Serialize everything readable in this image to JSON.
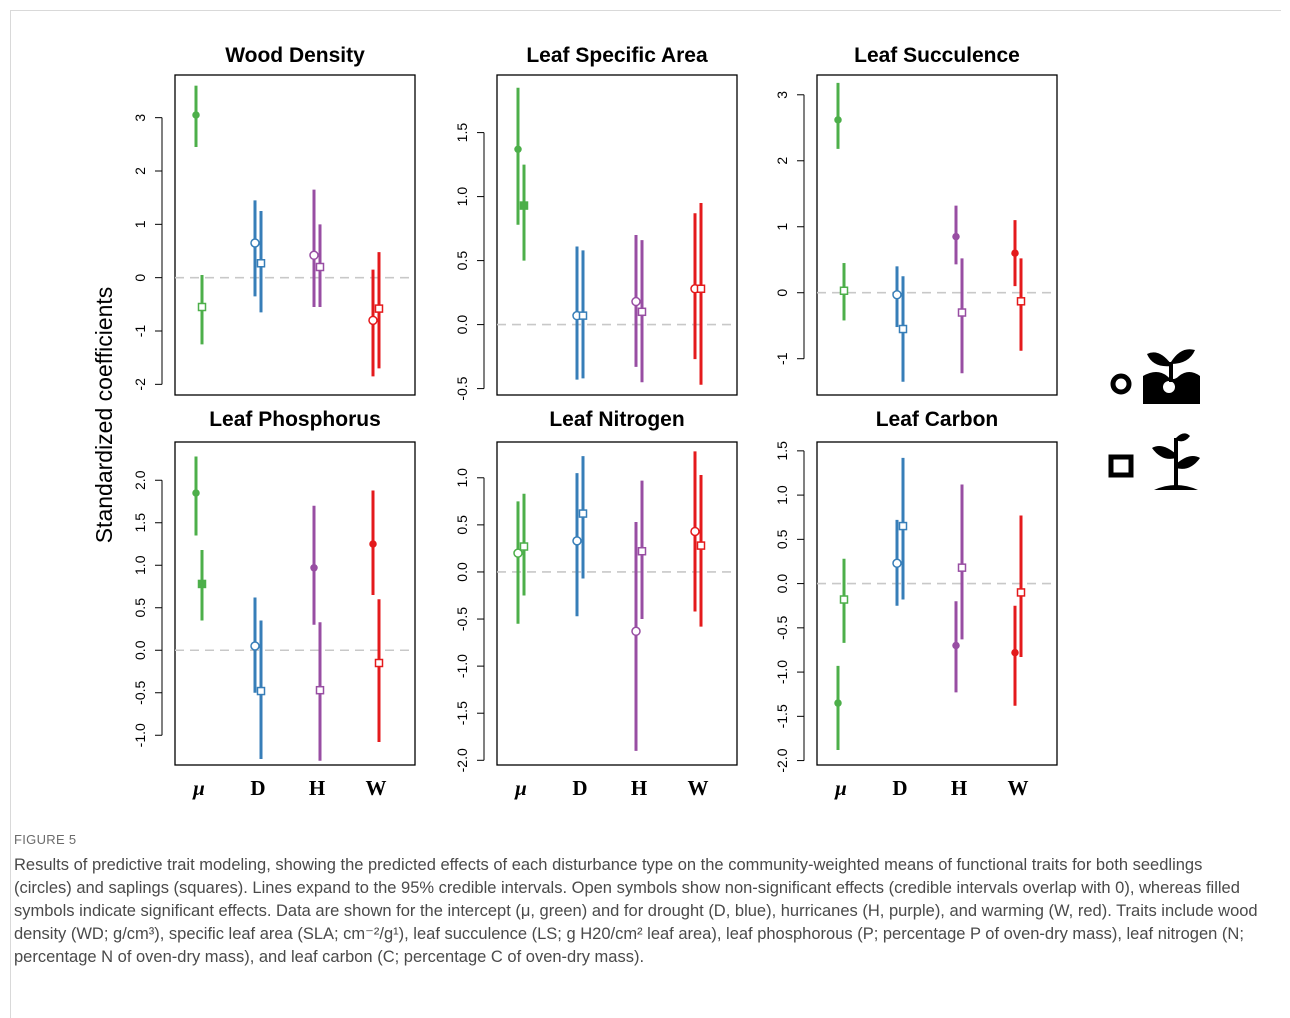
{
  "ylabel": "Standardized coefficients",
  "categories": [
    "μ",
    "D",
    "H",
    "W"
  ],
  "legend": [
    {
      "symbol": "circle",
      "label": "seedlings",
      "icon": "seedling-sprout-icon"
    },
    {
      "symbol": "square",
      "label": "saplings",
      "icon": "sapling-plant-icon"
    }
  ],
  "colors": {
    "mu": "#4daf4a",
    "D": "#377eb8",
    "H": "#984ea3",
    "W": "#e41a1c",
    "zero": "#c8c8c8"
  },
  "caption": {
    "label": "FIGURE 5",
    "text": "Results of predictive trait modeling, showing the predicted effects of each disturbance type on the community-weighted means of functional traits for both seedlings (circles) and saplings (squares). Lines expand to the 95% credible intervals. Open symbols show non-significant effects (credible intervals overlap with 0), whereas filled symbols indicate significant effects. Data are shown for the intercept (μ, green) and for drought (D, blue), hurricanes (H, purple), and warming (W, red). Traits include wood density (WD; g/cm³), specific leaf area (SLA; cm⁻²/g¹), leaf succulence (LS; g H20/cm² leaf area), leaf phosphorous (P; percentage P of oven-dry mass), leaf nitrogen (N; percentage N of oven-dry mass), and leaf carbon (C; percentage C of oven-dry mass)."
  },
  "chart_data": [
    {
      "type": "scatter",
      "title": "Wood Density",
      "ylim": [
        -2.2,
        3.8
      ],
      "ticks": [
        -2,
        -1,
        0,
        1,
        2,
        3
      ],
      "tick_labels": [
        "-2",
        "-1",
        "0",
        "1",
        "2",
        "3"
      ],
      "points": [
        {
          "category": "μ",
          "stage": "seedling",
          "value": 3.05,
          "lower": 2.45,
          "upper": 3.6,
          "significant": true
        },
        {
          "category": "μ",
          "stage": "sapling",
          "value": -0.55,
          "lower": -1.25,
          "upper": 0.05,
          "significant": false
        },
        {
          "category": "D",
          "stage": "seedling",
          "value": 0.65,
          "lower": -0.35,
          "upper": 1.45,
          "significant": false
        },
        {
          "category": "D",
          "stage": "sapling",
          "value": 0.27,
          "lower": -0.65,
          "upper": 1.25,
          "significant": false
        },
        {
          "category": "H",
          "stage": "seedling",
          "value": 0.42,
          "lower": -0.55,
          "upper": 1.65,
          "significant": false
        },
        {
          "category": "H",
          "stage": "sapling",
          "value": 0.2,
          "lower": -0.55,
          "upper": 1.0,
          "significant": false
        },
        {
          "category": "W",
          "stage": "seedling",
          "value": -0.8,
          "lower": -1.85,
          "upper": 0.15,
          "significant": false
        },
        {
          "category": "W",
          "stage": "sapling",
          "value": -0.58,
          "lower": -1.7,
          "upper": 0.48,
          "significant": false
        }
      ]
    },
    {
      "type": "scatter",
      "title": "Leaf Specific Area",
      "ylim": [
        -0.55,
        1.95
      ],
      "ticks": [
        -0.5,
        0,
        0.5,
        1,
        1.5
      ],
      "tick_labels": [
        "-0.5",
        "0.0",
        "0.5",
        "1.0",
        "1.5"
      ],
      "points": [
        {
          "category": "μ",
          "stage": "seedling",
          "value": 1.37,
          "lower": 0.78,
          "upper": 1.85,
          "significant": true
        },
        {
          "category": "μ",
          "stage": "sapling",
          "value": 0.93,
          "lower": 0.5,
          "upper": 1.25,
          "significant": true
        },
        {
          "category": "D",
          "stage": "seedling",
          "value": 0.07,
          "lower": -0.43,
          "upper": 0.61,
          "significant": false
        },
        {
          "category": "D",
          "stage": "sapling",
          "value": 0.07,
          "lower": -0.42,
          "upper": 0.58,
          "significant": false
        },
        {
          "category": "H",
          "stage": "seedling",
          "value": 0.18,
          "lower": -0.33,
          "upper": 0.7,
          "significant": false
        },
        {
          "category": "H",
          "stage": "sapling",
          "value": 0.1,
          "lower": -0.45,
          "upper": 0.66,
          "significant": false
        },
        {
          "category": "W",
          "stage": "seedling",
          "value": 0.28,
          "lower": -0.27,
          "upper": 0.87,
          "significant": false
        },
        {
          "category": "W",
          "stage": "sapling",
          "value": 0.28,
          "lower": -0.47,
          "upper": 0.95,
          "significant": false
        }
      ]
    },
    {
      "type": "scatter",
      "title": "Leaf Succulence",
      "ylim": [
        -1.55,
        3.3
      ],
      "ticks": [
        -1,
        0,
        1,
        2,
        3
      ],
      "tick_labels": [
        "-1",
        "0",
        "1",
        "2",
        "3"
      ],
      "points": [
        {
          "category": "μ",
          "stage": "seedling",
          "value": 2.62,
          "lower": 2.18,
          "upper": 3.18,
          "significant": true
        },
        {
          "category": "μ",
          "stage": "sapling",
          "value": 0.03,
          "lower": -0.42,
          "upper": 0.45,
          "significant": false
        },
        {
          "category": "D",
          "stage": "seedling",
          "value": -0.03,
          "lower": -0.52,
          "upper": 0.4,
          "significant": false
        },
        {
          "category": "D",
          "stage": "sapling",
          "value": -0.55,
          "lower": -1.35,
          "upper": 0.25,
          "significant": false
        },
        {
          "category": "H",
          "stage": "seedling",
          "value": 0.85,
          "lower": 0.43,
          "upper": 1.32,
          "significant": true
        },
        {
          "category": "H",
          "stage": "sapling",
          "value": -0.3,
          "lower": -1.22,
          "upper": 0.52,
          "significant": false
        },
        {
          "category": "W",
          "stage": "seedling",
          "value": 0.6,
          "lower": 0.1,
          "upper": 1.1,
          "significant": true
        },
        {
          "category": "W",
          "stage": "sapling",
          "value": -0.13,
          "lower": -0.88,
          "upper": 0.52,
          "significant": false
        }
      ]
    },
    {
      "type": "scatter",
      "title": "Leaf Phosphorus",
      "ylim": [
        -1.35,
        2.45
      ],
      "ticks": [
        -1,
        -0.5,
        0,
        0.5,
        1,
        1.5,
        2
      ],
      "tick_labels": [
        "-1.0",
        "-0.5",
        "0.0",
        "0.5",
        "1.0",
        "1.5",
        "2.0"
      ],
      "points": [
        {
          "category": "μ",
          "stage": "seedling",
          "value": 1.85,
          "lower": 1.35,
          "upper": 2.28,
          "significant": true
        },
        {
          "category": "μ",
          "stage": "sapling",
          "value": 0.78,
          "lower": 0.35,
          "upper": 1.18,
          "significant": true
        },
        {
          "category": "D",
          "stage": "seedling",
          "value": 0.05,
          "lower": -0.5,
          "upper": 0.62,
          "significant": false
        },
        {
          "category": "D",
          "stage": "sapling",
          "value": -0.48,
          "lower": -1.28,
          "upper": 0.35,
          "significant": false
        },
        {
          "category": "H",
          "stage": "seedling",
          "value": 0.97,
          "lower": 0.3,
          "upper": 1.7,
          "significant": true
        },
        {
          "category": "H",
          "stage": "sapling",
          "value": -0.47,
          "lower": -1.3,
          "upper": 0.33,
          "significant": false
        },
        {
          "category": "W",
          "stage": "seedling",
          "value": 1.25,
          "lower": 0.65,
          "upper": 1.88,
          "significant": true
        },
        {
          "category": "W",
          "stage": "sapling",
          "value": -0.15,
          "lower": -1.08,
          "upper": 0.6,
          "significant": false
        }
      ]
    },
    {
      "type": "scatter",
      "title": "Leaf Nitrogen",
      "ylim": [
        -2.05,
        1.38
      ],
      "ticks": [
        -2,
        -1.5,
        -1,
        -0.5,
        0,
        0.5,
        1
      ],
      "tick_labels": [
        "-2.0",
        "-1.5",
        "-1.0",
        "-0.5",
        "0.0",
        "0.5",
        "1.0"
      ],
      "points": [
        {
          "category": "μ",
          "stage": "seedling",
          "value": 0.2,
          "lower": -0.55,
          "upper": 0.75,
          "significant": false
        },
        {
          "category": "μ",
          "stage": "sapling",
          "value": 0.27,
          "lower": -0.25,
          "upper": 0.83,
          "significant": false
        },
        {
          "category": "D",
          "stage": "seedling",
          "value": 0.33,
          "lower": -0.47,
          "upper": 1.05,
          "significant": false
        },
        {
          "category": "D",
          "stage": "sapling",
          "value": 0.62,
          "lower": -0.07,
          "upper": 1.23,
          "significant": false
        },
        {
          "category": "H",
          "stage": "seedling",
          "value": -0.63,
          "lower": -1.9,
          "upper": 0.53,
          "significant": false
        },
        {
          "category": "H",
          "stage": "sapling",
          "value": 0.22,
          "lower": -0.5,
          "upper": 0.97,
          "significant": false
        },
        {
          "category": "W",
          "stage": "seedling",
          "value": 0.43,
          "lower": -0.42,
          "upper": 1.28,
          "significant": false
        },
        {
          "category": "W",
          "stage": "sapling",
          "value": 0.28,
          "lower": -0.58,
          "upper": 1.03,
          "significant": false
        }
      ]
    },
    {
      "type": "scatter",
      "title": "Leaf Carbon",
      "ylim": [
        -2.05,
        1.6
      ],
      "ticks": [
        -2,
        -1.5,
        -1,
        -0.5,
        0,
        0.5,
        1,
        1.5
      ],
      "tick_labels": [
        "-2.0",
        "-1.5",
        "-1.0",
        "-0.5",
        "0.0",
        "0.5",
        "1.0",
        "1.5"
      ],
      "points": [
        {
          "category": "μ",
          "stage": "seedling",
          "value": -1.35,
          "lower": -1.88,
          "upper": -0.93,
          "significant": true
        },
        {
          "category": "μ",
          "stage": "sapling",
          "value": -0.18,
          "lower": -0.67,
          "upper": 0.28,
          "significant": false
        },
        {
          "category": "D",
          "stage": "seedling",
          "value": 0.23,
          "lower": -0.25,
          "upper": 0.72,
          "significant": false
        },
        {
          "category": "D",
          "stage": "sapling",
          "value": 0.65,
          "lower": -0.18,
          "upper": 1.42,
          "significant": false
        },
        {
          "category": "H",
          "stage": "seedling",
          "value": -0.7,
          "lower": -1.23,
          "upper": -0.2,
          "significant": true
        },
        {
          "category": "H",
          "stage": "sapling",
          "value": 0.18,
          "lower": -0.63,
          "upper": 1.12,
          "significant": false
        },
        {
          "category": "W",
          "stage": "seedling",
          "value": -0.78,
          "lower": -1.38,
          "upper": -0.25,
          "significant": true
        },
        {
          "category": "W",
          "stage": "sapling",
          "value": -0.1,
          "lower": -0.83,
          "upper": 0.77,
          "significant": false
        }
      ]
    }
  ]
}
